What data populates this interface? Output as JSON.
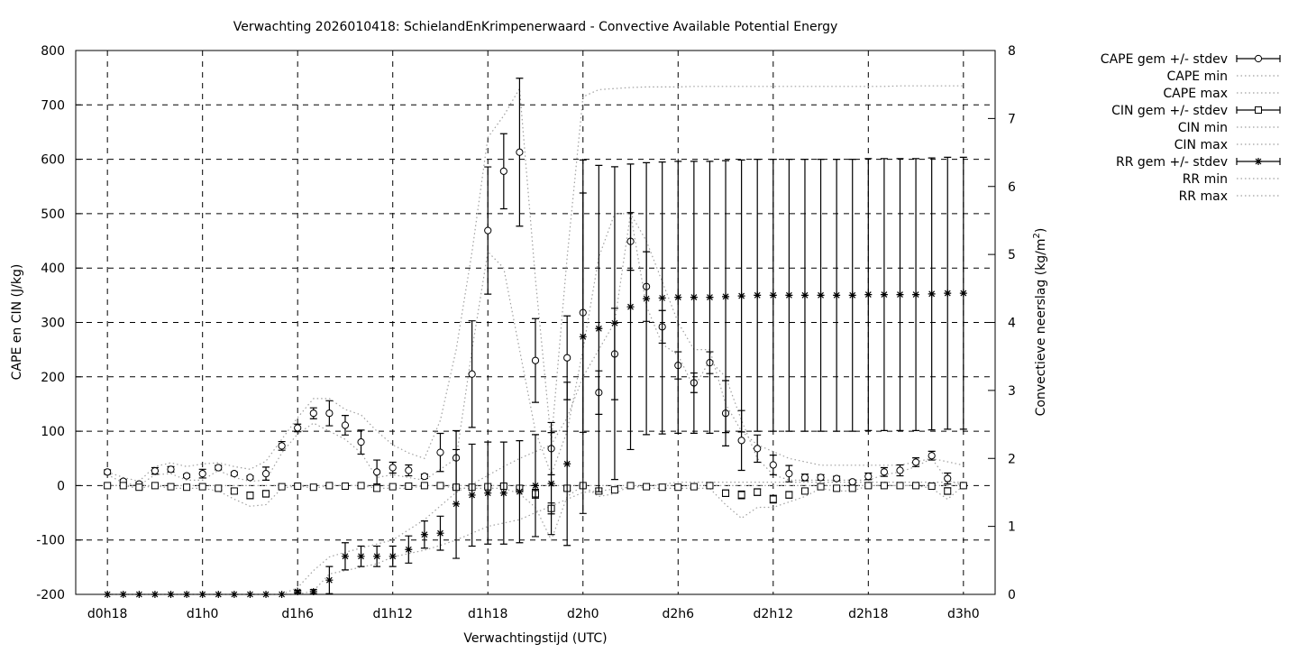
{
  "chart_data": {
    "type": "line",
    "title": "Verwachting 2026010418: SchielandEnKrimpenerwaard - Convective Available Potential Energy",
    "xlabel": "Verwachtingstijd (UTC)",
    "ylabel": "CAPE en CIN (J/kg)",
    "y2label": "Convectieve neerslag (kg/m",
    "y2label_sup": "2",
    "y2label_end": ")",
    "xlim": [
      -2,
      56
    ],
    "ylim": [
      -200,
      800
    ],
    "y2lim": [
      0,
      8
    ],
    "grid": true,
    "legend_position": "outside-right",
    "x_hours": [
      0,
      1,
      2,
      3,
      4,
      5,
      6,
      7,
      8,
      9,
      10,
      11,
      12,
      13,
      14,
      15,
      16,
      17,
      18,
      19,
      20,
      21,
      22,
      23,
      24,
      25,
      26,
      27,
      28,
      29,
      30,
      31,
      32,
      33,
      34,
      35,
      36,
      37,
      38,
      39,
      40,
      41,
      42,
      43,
      44,
      45,
      46,
      47,
      48,
      49,
      50,
      51,
      52,
      53,
      54
    ],
    "x_ticks": [
      {
        "value": 0,
        "label": "d0h18"
      },
      {
        "value": 6,
        "label": "d1h0"
      },
      {
        "value": 12,
        "label": "d1h6"
      },
      {
        "value": 18,
        "label": "d1h12"
      },
      {
        "value": 24,
        "label": "d1h18"
      },
      {
        "value": 30,
        "label": "d2h0"
      },
      {
        "value": 36,
        "label": "d2h6"
      },
      {
        "value": 42,
        "label": "d2h12"
      },
      {
        "value": 48,
        "label": "d2h18"
      },
      {
        "value": 54,
        "label": "d3h0"
      }
    ],
    "y_ticks": [
      "-200",
      "-100",
      "0",
      "100",
      "200",
      "300",
      "400",
      "500",
      "600",
      "700",
      "800"
    ],
    "y2_ticks": [
      "0",
      "1",
      "2",
      "3",
      "4",
      "5",
      "6",
      "7",
      "8"
    ],
    "series": [
      {
        "name": "CAPE gem +/- stdev",
        "axis": "y",
        "marker": "circle",
        "values": [
          25,
          8,
          3,
          27,
          30,
          18,
          22,
          33,
          22,
          15,
          22,
          73,
          106,
          133,
          133,
          111,
          80,
          25,
          33,
          28,
          17,
          61,
          51,
          205,
          469,
          578,
          613,
          230,
          68,
          235,
          318,
          171,
          242,
          449,
          366,
          292,
          221,
          189,
          226,
          133,
          83,
          68,
          38,
          22,
          15,
          15,
          13,
          7,
          17,
          25,
          28,
          43,
          55,
          13,
          0
        ],
        "stdev": [
          4,
          3,
          3,
          6,
          5,
          3,
          8,
          4,
          3,
          3,
          12,
          8,
          7,
          10,
          23,
          18,
          22,
          22,
          10,
          10,
          4,
          35,
          50,
          98,
          117,
          69,
          136,
          77,
          48,
          77,
          220,
          40,
          84,
          53,
          64,
          30,
          25,
          18,
          20,
          60,
          55,
          25,
          18,
          15,
          6,
          5,
          4,
          3,
          6,
          8,
          10,
          8,
          8,
          10,
          0
        ]
      },
      {
        "name": "CAPE min",
        "axis": "y",
        "style": "dotted",
        "values": [
          20,
          5,
          0,
          20,
          22,
          10,
          10,
          28,
          15,
          8,
          10,
          60,
          95,
          115,
          100,
          85,
          60,
          15,
          20,
          15,
          10,
          30,
          50,
          250,
          430,
          400,
          250,
          100,
          20,
          100,
          250,
          420,
          500,
          500,
          330,
          260,
          240,
          180,
          230,
          200,
          120,
          50,
          20,
          10,
          10,
          10,
          10,
          10,
          10,
          20,
          25,
          35,
          50,
          10,
          0
        ]
      },
      {
        "name": "CAPE max",
        "axis": "y",
        "style": "dotted",
        "values": [
          25,
          15,
          8,
          35,
          42,
          35,
          40,
          42,
          35,
          30,
          45,
          85,
          125,
          160,
          160,
          140,
          130,
          100,
          75,
          60,
          50,
          120,
          250,
          430,
          640,
          680,
          730,
          380,
          80,
          420,
          715,
          728,
          730,
          732,
          733,
          733,
          733,
          734,
          734,
          734,
          734,
          734,
          734,
          734,
          734,
          734,
          734,
          734,
          734,
          734,
          735,
          735,
          735,
          735,
          735
        ]
      },
      {
        "name": "CIN gem +/- stdev",
        "axis": "y",
        "marker": "square",
        "values": [
          0,
          0,
          -3,
          0,
          -2,
          -3,
          -2,
          -5,
          -10,
          -18,
          -15,
          -2,
          -1,
          -3,
          0,
          -1,
          0,
          -5,
          -2,
          -1,
          0,
          0,
          -3,
          -3,
          -2,
          -1,
          -5,
          -15,
          -42,
          -5,
          0,
          -10,
          -8,
          0,
          -2,
          -3,
          -3,
          -2,
          0,
          -14,
          -17,
          -12,
          -25,
          -17,
          -10,
          -2,
          -5,
          -5,
          0,
          0,
          0,
          0,
          -1,
          -10,
          0
        ],
        "stdev": [
          2,
          2,
          3,
          2,
          2,
          2,
          2,
          3,
          4,
          6,
          6,
          2,
          2,
          2,
          2,
          2,
          2,
          5,
          2,
          2,
          2,
          2,
          3,
          3,
          2,
          2,
          4,
          8,
          10,
          4,
          2,
          5,
          5,
          2,
          2,
          2,
          2,
          2,
          2,
          6,
          7,
          6,
          7,
          6,
          5,
          2,
          3,
          3,
          2,
          2,
          2,
          2,
          2,
          6,
          2
        ]
      },
      {
        "name": "CIN min",
        "axis": "y",
        "style": "dotted",
        "values": [
          0,
          0,
          -5,
          0,
          -5,
          -5,
          -5,
          -10,
          -25,
          -38,
          -35,
          -5,
          0,
          -5,
          0,
          0,
          0,
          -5,
          -5,
          -5,
          0,
          0,
          -5,
          -5,
          -5,
          -5,
          -15,
          -40,
          -100,
          -20,
          0,
          -20,
          -15,
          0,
          -5,
          -5,
          -5,
          -5,
          -5,
          -35,
          -60,
          -40,
          -40,
          -30,
          -20,
          -5,
          -10,
          -10,
          0,
          0,
          0,
          0,
          -5,
          -25,
          0
        ]
      },
      {
        "name": "CIN max",
        "axis": "y",
        "style": "dotted",
        "values": [
          0,
          0,
          0,
          0,
          0,
          0,
          0,
          0,
          0,
          0,
          0,
          0,
          0,
          0,
          0,
          0,
          0,
          0,
          0,
          0,
          0,
          0,
          0,
          0,
          0,
          0,
          0,
          0,
          0,
          0,
          0,
          0,
          0,
          0,
          0,
          0,
          0,
          0,
          0,
          0,
          0,
          0,
          0,
          0,
          0,
          0,
          0,
          0,
          0,
          0,
          0,
          0,
          0,
          0,
          0
        ]
      },
      {
        "name": "RR gem +/- stdev",
        "axis": "y2",
        "marker": "star",
        "values": [
          0,
          0,
          0,
          0,
          0,
          0,
          0,
          0,
          0,
          0,
          0,
          0,
          0.04,
          0.04,
          0.21,
          0.56,
          0.56,
          0.56,
          0.56,
          0.66,
          0.88,
          0.9,
          1.33,
          1.46,
          1.49,
          1.49,
          1.51,
          1.6,
          1.63,
          1.92,
          3.79,
          3.91,
          3.99,
          4.23,
          4.35,
          4.36,
          4.37,
          4.37,
          4.37,
          4.38,
          4.39,
          4.4,
          4.4,
          4.4,
          4.4,
          4.4,
          4.4,
          4.4,
          4.41,
          4.41,
          4.41,
          4.41,
          4.42,
          4.43,
          4.43
        ],
        "stdev": [
          0,
          0,
          0,
          0,
          0,
          0,
          0,
          0,
          0,
          0,
          0,
          0,
          0.02,
          0.03,
          0.2,
          0.2,
          0.15,
          0.15,
          0.15,
          0.2,
          0.2,
          0.25,
          0.8,
          0.75,
          0.75,
          0.75,
          0.75,
          0.75,
          0.75,
          1.2,
          2.6,
          2.4,
          2.3,
          2.1,
          2.0,
          2.0,
          2.0,
          2.0,
          2.0,
          2.0,
          2.0,
          2.0,
          2.0,
          2.0,
          2.0,
          2.0,
          2.0,
          2.0,
          2.0,
          2.0,
          2.0,
          2.0,
          2.0,
          2.0,
          2.0
        ]
      },
      {
        "name": "RR min",
        "axis": "y2",
        "style": "dotted",
        "values": [
          0,
          0,
          0,
          0,
          0,
          0,
          0,
          0,
          0,
          0,
          0,
          0,
          0,
          0.05,
          0.3,
          0.35,
          0.4,
          0.45,
          0.55,
          0.6,
          0.65,
          0.72,
          0.8,
          0.9,
          1.0,
          1.05,
          1.1,
          1.2,
          1.3,
          1.4,
          1.5,
          1.52,
          1.55,
          1.58,
          1.6,
          1.62,
          1.65,
          1.65,
          1.65,
          1.65,
          1.65,
          1.65,
          1.65,
          1.65,
          1.65,
          1.65,
          1.65,
          1.65,
          1.65,
          1.65,
          1.65,
          1.65,
          1.65,
          1.65,
          1.65
        ]
      },
      {
        "name": "RR max",
        "axis": "y2",
        "style": "dotted",
        "values": [
          0,
          0,
          0,
          0,
          0,
          0,
          0,
          0,
          0,
          0,
          0,
          0,
          0.1,
          0.35,
          0.55,
          0.62,
          0.68,
          0.74,
          0.8,
          0.95,
          1.1,
          1.3,
          1.5,
          1.62,
          1.75,
          1.88,
          2.0,
          2.1,
          2.2,
          2.6,
          3.2,
          3.6,
          4.0,
          5.6,
          5.2,
          4.6,
          4.0,
          3.6,
          3.6,
          2.8,
          2.4,
          2.2,
          2.1,
          2.0,
          1.95,
          1.9,
          1.9,
          1.9,
          1.9,
          1.9,
          1.9,
          1.95,
          2.0,
          1.95,
          1.9
        ]
      }
    ]
  }
}
